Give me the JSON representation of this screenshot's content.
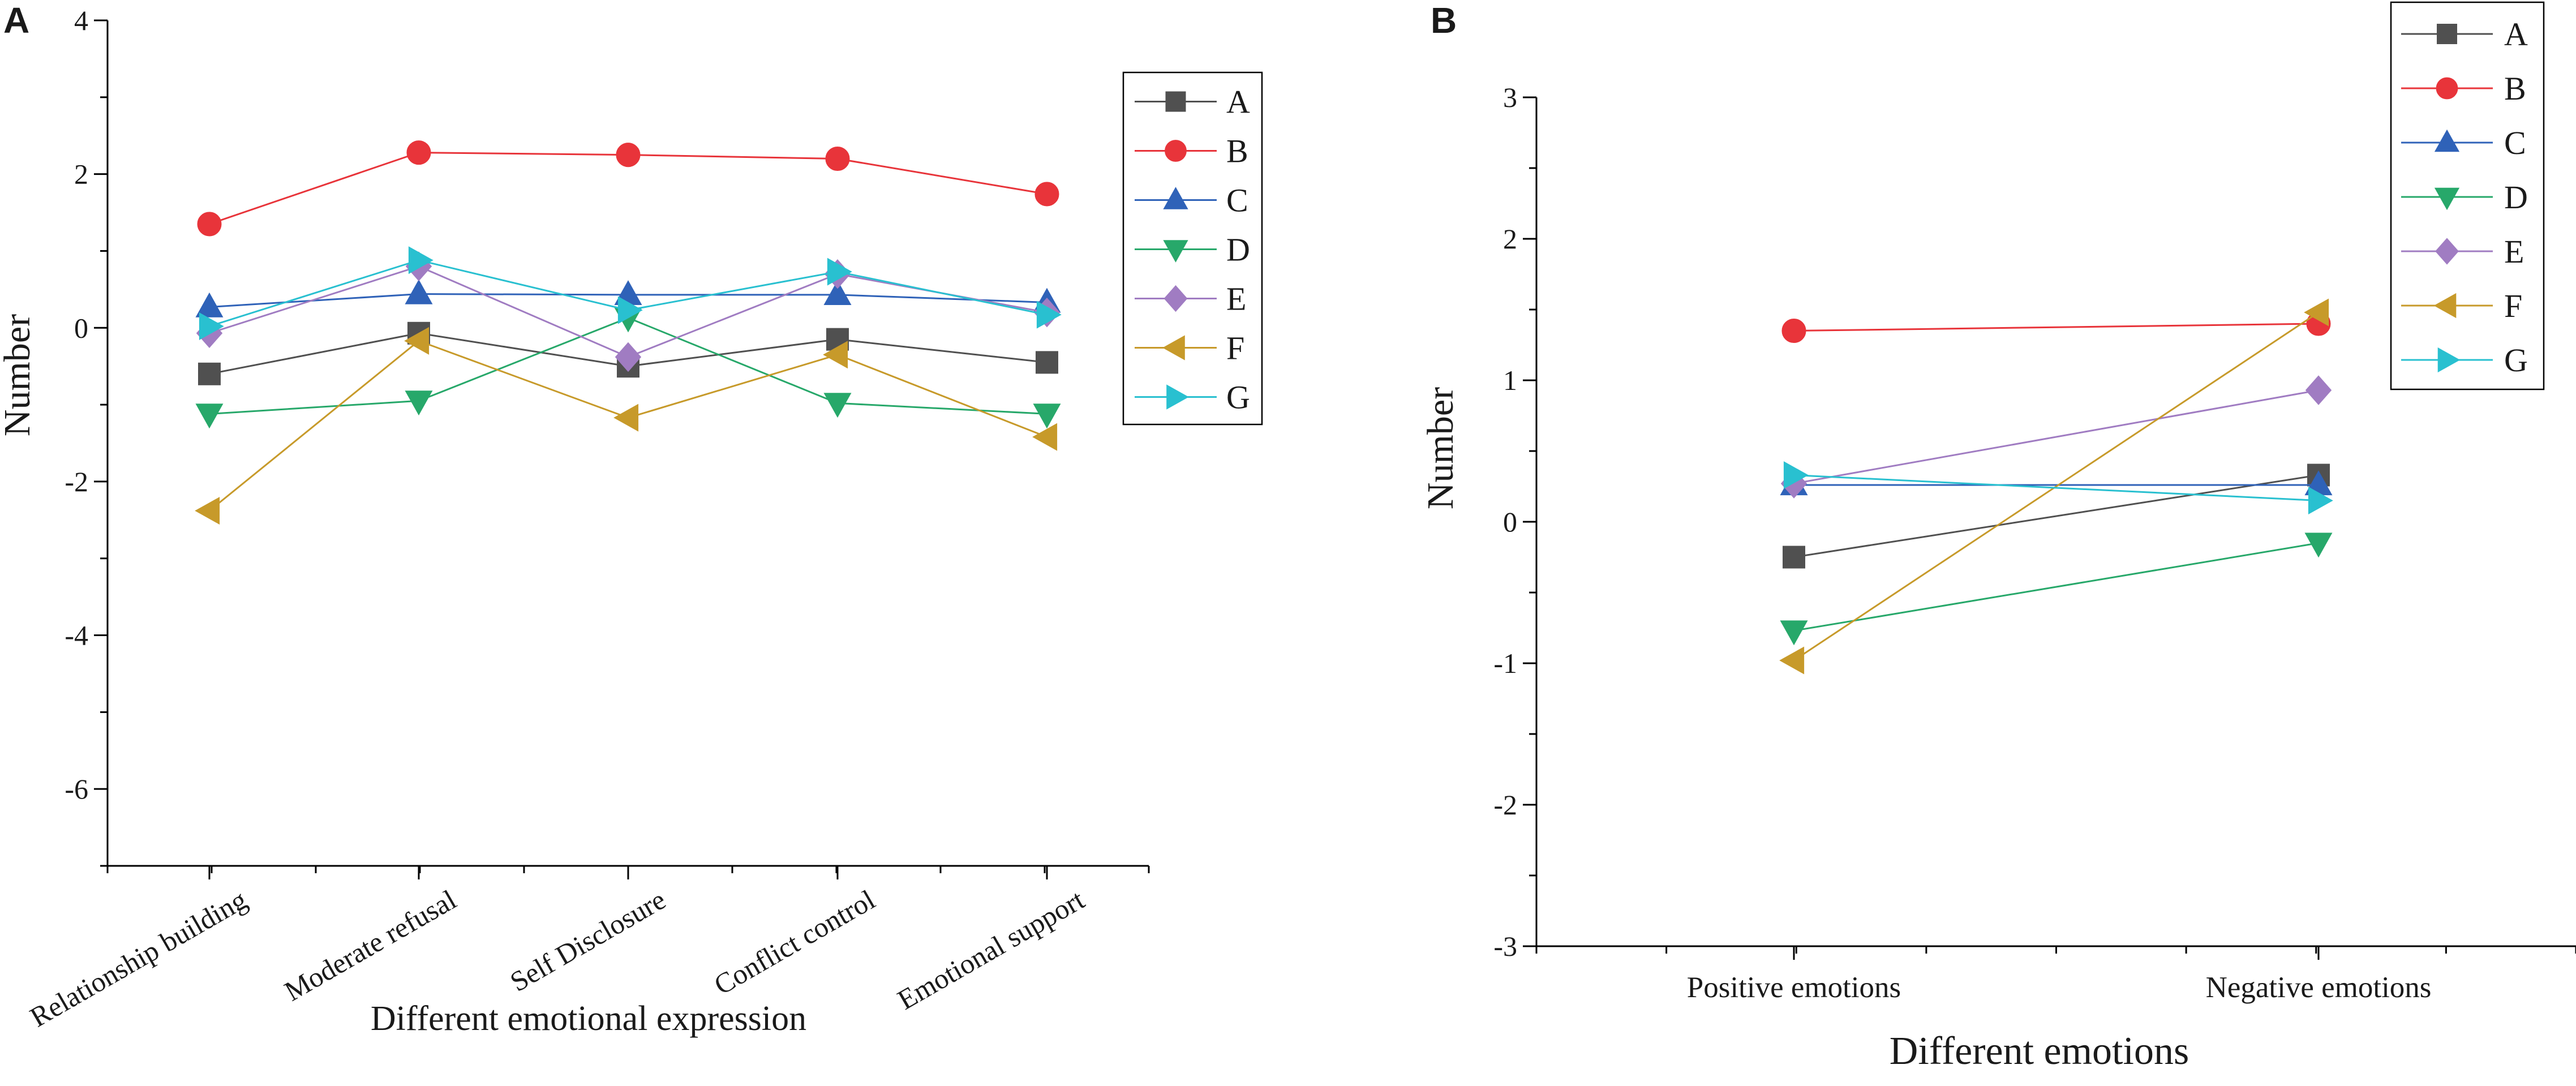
{
  "colors": {
    "A": "#505050",
    "B": "#e8343a",
    "C": "#2f62b8",
    "D": "#27a86a",
    "E": "#a07cc2",
    "F": "#c79a2a",
    "G": "#29c0d0"
  },
  "chart_data": [
    {
      "type": "line",
      "panel_label": "A",
      "title": "",
      "xlabel": "Different emotional expression",
      "ylabel": "Number",
      "categories": [
        "Relationship building",
        "Moderate refusal",
        "Self Disclosure",
        "Conflict control",
        "Emotional support"
      ],
      "ylim": [
        -7,
        4
      ],
      "yticks": [
        -6,
        -4,
        -2,
        0,
        2,
        4
      ],
      "ytick_labels": [
        "-6",
        "-4",
        "-2",
        "0",
        "2",
        "4"
      ],
      "legend_position": "top-right",
      "series": [
        {
          "name": "A",
          "marker": "square",
          "values": [
            -0.6,
            -0.07,
            -0.5,
            -0.15,
            -0.45
          ]
        },
        {
          "name": "B",
          "marker": "circle",
          "values": [
            1.35,
            2.28,
            2.25,
            2.2,
            1.74
          ]
        },
        {
          "name": "C",
          "marker": "triangle-up",
          "values": [
            0.27,
            0.44,
            0.43,
            0.43,
            0.33
          ]
        },
        {
          "name": "D",
          "marker": "triangle-down",
          "values": [
            -1.12,
            -0.95,
            0.13,
            -0.98,
            -1.12
          ]
        },
        {
          "name": "E",
          "marker": "diamond",
          "values": [
            -0.07,
            0.8,
            -0.38,
            0.7,
            0.2
          ]
        },
        {
          "name": "F",
          "marker": "triangle-left",
          "values": [
            -2.38,
            -0.17,
            -1.17,
            -0.35,
            -1.42
          ]
        },
        {
          "name": "G",
          "marker": "triangle-right",
          "values": [
            0.02,
            0.88,
            0.23,
            0.73,
            0.17
          ]
        }
      ]
    },
    {
      "type": "line",
      "panel_label": "B",
      "title": "",
      "xlabel": "Different emotions",
      "ylabel": "Number",
      "categories": [
        "Positive emotions",
        "Negative emotions"
      ],
      "ylim": [
        -3,
        3
      ],
      "yticks": [
        -3,
        -2,
        -1,
        0,
        1,
        2,
        3
      ],
      "ytick_labels": [
        "-3",
        "-2",
        "-1",
        "0",
        "1",
        "2",
        "3"
      ],
      "legend_position": "top-right",
      "series": [
        {
          "name": "A",
          "marker": "square",
          "values": [
            -0.25,
            0.33
          ]
        },
        {
          "name": "B",
          "marker": "circle",
          "values": [
            1.35,
            1.4
          ]
        },
        {
          "name": "C",
          "marker": "triangle-up",
          "values": [
            0.26,
            0.26
          ]
        },
        {
          "name": "D",
          "marker": "triangle-down",
          "values": [
            -0.77,
            -0.15
          ]
        },
        {
          "name": "E",
          "marker": "diamond",
          "values": [
            0.27,
            0.93
          ]
        },
        {
          "name": "F",
          "marker": "triangle-left",
          "values": [
            -0.98,
            1.48
          ]
        },
        {
          "name": "G",
          "marker": "triangle-right",
          "values": [
            0.33,
            0.15
          ]
        }
      ]
    }
  ]
}
